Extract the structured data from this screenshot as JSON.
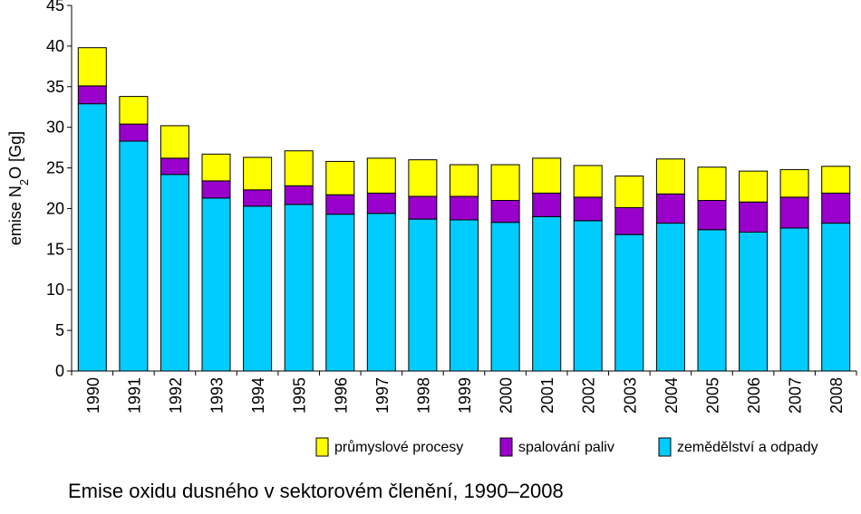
{
  "chart_data": {
    "type": "bar",
    "stacked": true,
    "categories": [
      "1990",
      "1991",
      "1992",
      "1993",
      "1994",
      "1995",
      "1996",
      "1997",
      "1998",
      "1999",
      "2000",
      "2001",
      "2002",
      "2003",
      "2004",
      "2005",
      "2006",
      "2007",
      "2008"
    ],
    "series": [
      {
        "name": "zemědělství a odpady",
        "color": "#00CCFF",
        "values": [
          32.9,
          28.3,
          24.2,
          21.3,
          20.3,
          20.5,
          19.3,
          19.4,
          18.7,
          18.6,
          18.3,
          19.0,
          18.5,
          16.8,
          18.2,
          17.4,
          17.1,
          17.6,
          18.2
        ]
      },
      {
        "name": "spalování paliv",
        "color": "#9900CC",
        "values": [
          2.2,
          2.1,
          2.0,
          2.1,
          2.0,
          2.3,
          2.4,
          2.5,
          2.8,
          2.9,
          2.7,
          2.9,
          2.9,
          3.3,
          3.6,
          3.6,
          3.7,
          3.8,
          3.7
        ]
      },
      {
        "name": "průmyslové procesy",
        "color": "#FFFF00",
        "values": [
          4.7,
          3.4,
          4.0,
          3.3,
          4.0,
          4.3,
          4.1,
          4.3,
          4.5,
          3.9,
          4.4,
          4.3,
          3.9,
          3.9,
          4.3,
          4.1,
          3.8,
          3.4,
          3.3
        ]
      }
    ],
    "legend_order": [
      "průmyslové procesy",
      "spalování paliv",
      "zemědělství a odpady"
    ],
    "legend_position": "bottom-right",
    "ylabel_prefix": "emise N",
    "ylabel_sub": "2",
    "ylabel_suffix": "O [Gg]",
    "ylim": [
      0,
      45
    ],
    "yticks": [
      0,
      5,
      10,
      15,
      20,
      25,
      30,
      35,
      40,
      45
    ],
    "grid": false
  },
  "caption": "Emise oxidu dusného v sektorovém členění, 1990–2008"
}
